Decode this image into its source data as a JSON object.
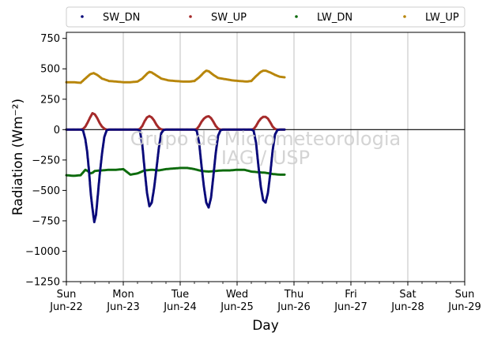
{
  "chart_data": {
    "type": "scatter",
    "title": "",
    "xlabel": "Day",
    "ylabel": "Radiation (Wm⁻²)",
    "ylim": [
      -1250,
      800
    ],
    "yticks": [
      -1250,
      -1000,
      -750,
      -500,
      -250,
      0,
      250,
      500,
      750
    ],
    "ytick_labels": [
      "−1250",
      "−1000",
      "−750",
      "−500",
      "−250",
      "0",
      "250",
      "500",
      "750"
    ],
    "xlim": [
      "2025-06-22",
      "2025-06-29"
    ],
    "xticks": [
      {
        "date": "2025-06-22",
        "day": "Sun",
        "date_label": "Jun-22"
      },
      {
        "date": "2025-06-23",
        "day": "Mon",
        "date_label": "Jun-23"
      },
      {
        "date": "2025-06-24",
        "day": "Tue",
        "date_label": "Jun-24"
      },
      {
        "date": "2025-06-25",
        "day": "Wed",
        "date_label": "Jun-25"
      },
      {
        "date": "2025-06-26",
        "day": "Thu",
        "date_label": "Jun-26"
      },
      {
        "date": "2025-06-27",
        "day": "Fri",
        "date_label": "Jun-27"
      },
      {
        "date": "2025-06-28",
        "day": "Sat",
        "date_label": "Jun-28"
      },
      {
        "date": "2025-06-29",
        "day": "Sun",
        "date_label": "Jun-29"
      }
    ],
    "grid": "vertical",
    "reference_line_y": 0,
    "legend_position": "top",
    "watermark": [
      "Grupo de Micrometeorologia",
      "IAG / USP"
    ],
    "series": [
      {
        "name": "SW_DN",
        "color": "#0a0a7a",
        "points": [
          [
            "2025-06-22 00:00",
            0
          ],
          [
            "2025-06-22 06:00",
            0
          ],
          [
            "2025-06-22 07:00",
            -5
          ],
          [
            "2025-06-22 08:00",
            -80
          ],
          [
            "2025-06-22 08:45",
            -180
          ],
          [
            "2025-06-22 09:30",
            -330
          ],
          [
            "2025-06-22 10:15",
            -520
          ],
          [
            "2025-06-22 11:00",
            -650
          ],
          [
            "2025-06-22 11:45",
            -760
          ],
          [
            "2025-06-22 12:30",
            -700
          ],
          [
            "2025-06-22 13:15",
            -540
          ],
          [
            "2025-06-22 14:00",
            -380
          ],
          [
            "2025-06-22 15:00",
            -200
          ],
          [
            "2025-06-22 16:00",
            -60
          ],
          [
            "2025-06-22 17:00",
            -5
          ],
          [
            "2025-06-22 18:00",
            0
          ],
          [
            "2025-06-23 06:00",
            0
          ],
          [
            "2025-06-23 07:00",
            -10
          ],
          [
            "2025-06-23 08:00",
            -120
          ],
          [
            "2025-06-23 09:00",
            -330
          ],
          [
            "2025-06-23 10:00",
            -520
          ],
          [
            "2025-06-23 11:00",
            -630
          ],
          [
            "2025-06-23 12:00",
            -600
          ],
          [
            "2025-06-23 13:00",
            -480
          ],
          [
            "2025-06-23 14:00",
            -320
          ],
          [
            "2025-06-23 15:00",
            -150
          ],
          [
            "2025-06-23 16:00",
            -30
          ],
          [
            "2025-06-23 17:00",
            -3
          ],
          [
            "2025-06-23 18:00",
            0
          ],
          [
            "2025-06-24 06:00",
            0
          ],
          [
            "2025-06-24 07:00",
            -10
          ],
          [
            "2025-06-24 08:00",
            -110
          ],
          [
            "2025-06-24 09:00",
            -300
          ],
          [
            "2025-06-24 10:00",
            -470
          ],
          [
            "2025-06-24 11:00",
            -600
          ],
          [
            "2025-06-24 12:00",
            -640
          ],
          [
            "2025-06-24 13:00",
            -560
          ],
          [
            "2025-06-24 14:00",
            -380
          ],
          [
            "2025-06-24 15:00",
            -190
          ],
          [
            "2025-06-24 16:00",
            -50
          ],
          [
            "2025-06-24 17:00",
            -5
          ],
          [
            "2025-06-24 18:00",
            0
          ],
          [
            "2025-06-25 06:00",
            0
          ],
          [
            "2025-06-25 07:00",
            -10
          ],
          [
            "2025-06-25 08:00",
            -110
          ],
          [
            "2025-06-25 09:00",
            -300
          ],
          [
            "2025-06-25 10:00",
            -470
          ],
          [
            "2025-06-25 11:00",
            -580
          ],
          [
            "2025-06-25 12:00",
            -600
          ],
          [
            "2025-06-25 13:00",
            -520
          ],
          [
            "2025-06-25 14:00",
            -360
          ],
          [
            "2025-06-25 15:00",
            -170
          ],
          [
            "2025-06-25 16:00",
            -40
          ],
          [
            "2025-06-25 17:00",
            -3
          ],
          [
            "2025-06-25 18:00",
            0
          ],
          [
            "2025-06-25 20:00",
            0
          ]
        ]
      },
      {
        "name": "SW_UP",
        "color": "#a52a2a",
        "points": [
          [
            "2025-06-22 00:00",
            0
          ],
          [
            "2025-06-22 06:00",
            0
          ],
          [
            "2025-06-22 07:00",
            5
          ],
          [
            "2025-06-22 08:00",
            25
          ],
          [
            "2025-06-22 09:00",
            60
          ],
          [
            "2025-06-22 10:00",
            100
          ],
          [
            "2025-06-22 11:00",
            135
          ],
          [
            "2025-06-22 12:00",
            125
          ],
          [
            "2025-06-22 13:00",
            95
          ],
          [
            "2025-06-22 14:00",
            55
          ],
          [
            "2025-06-22 15:00",
            25
          ],
          [
            "2025-06-22 16:00",
            8
          ],
          [
            "2025-06-22 17:00",
            0
          ],
          [
            "2025-06-23 06:00",
            0
          ],
          [
            "2025-06-23 07:00",
            5
          ],
          [
            "2025-06-23 08:00",
            30
          ],
          [
            "2025-06-23 09:00",
            70
          ],
          [
            "2025-06-23 10:00",
            100
          ],
          [
            "2025-06-23 11:00",
            112
          ],
          [
            "2025-06-23 12:00",
            100
          ],
          [
            "2025-06-23 13:00",
            75
          ],
          [
            "2025-06-23 14:00",
            40
          ],
          [
            "2025-06-23 15:00",
            15
          ],
          [
            "2025-06-23 16:00",
            3
          ],
          [
            "2025-06-23 17:00",
            0
          ],
          [
            "2025-06-24 06:00",
            0
          ],
          [
            "2025-06-24 07:00",
            5
          ],
          [
            "2025-06-24 08:00",
            30
          ],
          [
            "2025-06-24 09:00",
            65
          ],
          [
            "2025-06-24 10:00",
            90
          ],
          [
            "2025-06-24 11:00",
            105
          ],
          [
            "2025-06-24 12:00",
            110
          ],
          [
            "2025-06-24 13:00",
            95
          ],
          [
            "2025-06-24 14:00",
            65
          ],
          [
            "2025-06-24 15:00",
            30
          ],
          [
            "2025-06-24 16:00",
            8
          ],
          [
            "2025-06-24 17:00",
            0
          ],
          [
            "2025-06-25 06:00",
            0
          ],
          [
            "2025-06-25 07:00",
            5
          ],
          [
            "2025-06-25 08:00",
            30
          ],
          [
            "2025-06-25 09:00",
            65
          ],
          [
            "2025-06-25 10:00",
            90
          ],
          [
            "2025-06-25 11:00",
            105
          ],
          [
            "2025-06-25 12:00",
            105
          ],
          [
            "2025-06-25 13:00",
            90
          ],
          [
            "2025-06-25 14:00",
            60
          ],
          [
            "2025-06-25 15:00",
            25
          ],
          [
            "2025-06-25 16:00",
            5
          ],
          [
            "2025-06-25 17:00",
            0
          ],
          [
            "2025-06-25 20:00",
            0
          ]
        ]
      },
      {
        "name": "LW_DN",
        "color": "#0d6b0d",
        "points": [
          [
            "2025-06-22 00:00",
            -375
          ],
          [
            "2025-06-22 03:00",
            -380
          ],
          [
            "2025-06-22 06:00",
            -375
          ],
          [
            "2025-06-22 08:00",
            -330
          ],
          [
            "2025-06-22 09:00",
            -340
          ],
          [
            "2025-06-22 10:00",
            -360
          ],
          [
            "2025-06-22 11:00",
            -355
          ],
          [
            "2025-06-22 12:00",
            -340
          ],
          [
            "2025-06-22 15:00",
            -335
          ],
          [
            "2025-06-22 18:00",
            -330
          ],
          [
            "2025-06-22 21:00",
            -330
          ],
          [
            "2025-06-23 00:00",
            -325
          ],
          [
            "2025-06-23 03:00",
            -370
          ],
          [
            "2025-06-23 06:00",
            -360
          ],
          [
            "2025-06-23 09:00",
            -335
          ],
          [
            "2025-06-23 12:00",
            -330
          ],
          [
            "2025-06-23 15:00",
            -335
          ],
          [
            "2025-06-23 18:00",
            -325
          ],
          [
            "2025-06-23 21:00",
            -320
          ],
          [
            "2025-06-24 00:00",
            -315
          ],
          [
            "2025-06-24 03:00",
            -315
          ],
          [
            "2025-06-24 06:00",
            -325
          ],
          [
            "2025-06-24 09:00",
            -340
          ],
          [
            "2025-06-24 12:00",
            -345
          ],
          [
            "2025-06-24 15:00",
            -340
          ],
          [
            "2025-06-24 18:00",
            -335
          ],
          [
            "2025-06-24 21:00",
            -335
          ],
          [
            "2025-06-25 00:00",
            -330
          ],
          [
            "2025-06-25 03:00",
            -330
          ],
          [
            "2025-06-25 06:00",
            -345
          ],
          [
            "2025-06-25 09:00",
            -350
          ],
          [
            "2025-06-25 12:00",
            -355
          ],
          [
            "2025-06-25 15:00",
            -365
          ],
          [
            "2025-06-25 18:00",
            -370
          ],
          [
            "2025-06-25 20:00",
            -370
          ]
        ]
      },
      {
        "name": "LW_UP",
        "color": "#b8860b",
        "points": [
          [
            "2025-06-22 00:00",
            390
          ],
          [
            "2025-06-22 03:00",
            390
          ],
          [
            "2025-06-22 06:00",
            385
          ],
          [
            "2025-06-22 08:00",
            420
          ],
          [
            "2025-06-22 10:00",
            455
          ],
          [
            "2025-06-22 11:30",
            465
          ],
          [
            "2025-06-22 13:00",
            450
          ],
          [
            "2025-06-22 15:00",
            420
          ],
          [
            "2025-06-22 18:00",
            400
          ],
          [
            "2025-06-22 21:00",
            395
          ],
          [
            "2025-06-23 00:00",
            390
          ],
          [
            "2025-06-23 03:00",
            390
          ],
          [
            "2025-06-23 06:00",
            395
          ],
          [
            "2025-06-23 08:00",
            420
          ],
          [
            "2025-06-23 10:00",
            460
          ],
          [
            "2025-06-23 11:00",
            475
          ],
          [
            "2025-06-23 12:00",
            470
          ],
          [
            "2025-06-23 14:00",
            445
          ],
          [
            "2025-06-23 16:00",
            420
          ],
          [
            "2025-06-23 19:00",
            405
          ],
          [
            "2025-06-23 22:00",
            400
          ],
          [
            "2025-06-24 01:00",
            395
          ],
          [
            "2025-06-24 04:00",
            395
          ],
          [
            "2025-06-24 06:00",
            400
          ],
          [
            "2025-06-24 08:00",
            430
          ],
          [
            "2025-06-24 10:00",
            470
          ],
          [
            "2025-06-24 11:00",
            485
          ],
          [
            "2025-06-24 12:00",
            480
          ],
          [
            "2025-06-24 14:00",
            450
          ],
          [
            "2025-06-24 16:00",
            425
          ],
          [
            "2025-06-24 19:00",
            415
          ],
          [
            "2025-06-24 22:00",
            405
          ],
          [
            "2025-06-25 01:00",
            400
          ],
          [
            "2025-06-25 04:00",
            395
          ],
          [
            "2025-06-25 06:00",
            400
          ],
          [
            "2025-06-25 08:00",
            440
          ],
          [
            "2025-06-25 10:00",
            475
          ],
          [
            "2025-06-25 11:00",
            485
          ],
          [
            "2025-06-25 12:00",
            485
          ],
          [
            "2025-06-25 14:00",
            470
          ],
          [
            "2025-06-25 16:00",
            450
          ],
          [
            "2025-06-25 18:00",
            435
          ],
          [
            "2025-06-25 20:00",
            430
          ]
        ]
      }
    ]
  }
}
